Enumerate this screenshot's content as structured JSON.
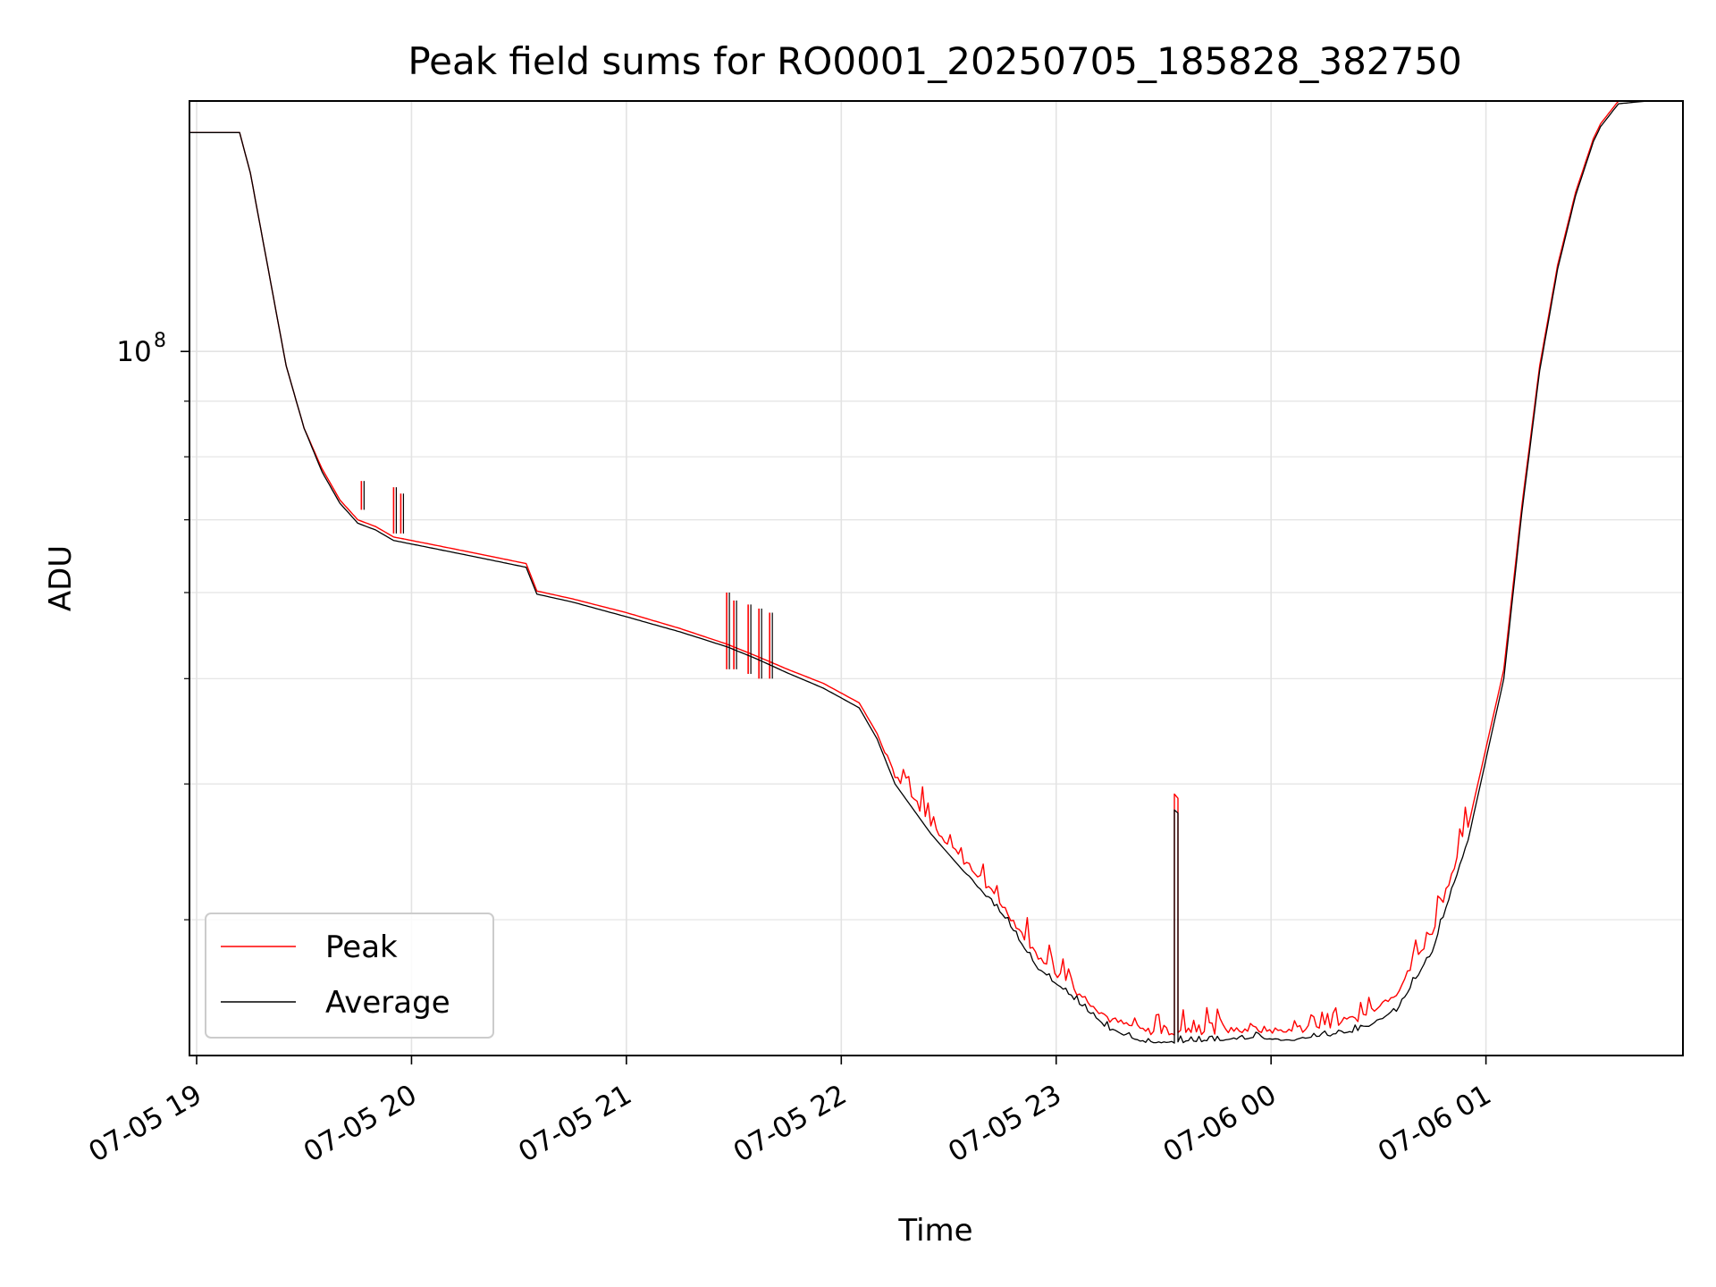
{
  "chart_data": {
    "type": "line",
    "title": "Peak field sums for RO0001_20250705_185828_382750",
    "xlabel": "Time",
    "ylabel": "ADU",
    "y_scale": "log",
    "grid": true,
    "legend_position": "lower-left",
    "xlim": [
      "2025-07-05 18:58",
      "2025-07-06 01:55"
    ],
    "ylim": [
      22500000,
      170000000
    ],
    "x_ticks": [
      {
        "t": "2025-07-05 19:00",
        "label": "07-05 19"
      },
      {
        "t": "2025-07-05 20:00",
        "label": "07-05 20"
      },
      {
        "t": "2025-07-05 21:00",
        "label": "07-05 21"
      },
      {
        "t": "2025-07-05 22:00",
        "label": "07-05 22"
      },
      {
        "t": "2025-07-05 23:00",
        "label": "07-05 23"
      },
      {
        "t": "2025-07-06 00:00",
        "label": "07-06 00"
      },
      {
        "t": "2025-07-06 01:00",
        "label": "07-06 01"
      }
    ],
    "y_major_tick": {
      "value": 100000000,
      "label_base": "10",
      "label_exp": "8"
    },
    "y_minor_ticks": [
      30000000,
      40000000,
      50000000,
      60000000,
      70000000,
      80000000,
      90000000,
      200000000
    ],
    "series": [
      {
        "name": "Peak",
        "color": "#ff0000",
        "x": [
          "2025-07-05 18:58",
          "2025-07-05 19:05",
          "2025-07-05 19:10",
          "2025-07-05 19:12",
          "2025-07-05 19:15",
          "2025-07-05 19:20",
          "2025-07-05 19:25",
          "2025-07-05 19:30",
          "2025-07-05 19:35",
          "2025-07-05 19:40",
          "2025-07-05 19:45",
          "2025-07-05 19:50",
          "2025-07-05 19:55",
          "2025-07-05 20:00",
          "2025-07-05 20:05",
          "2025-07-05 20:15",
          "2025-07-05 20:25",
          "2025-07-05 20:32",
          "2025-07-05 20:35",
          "2025-07-05 20:45",
          "2025-07-05 21:00",
          "2025-07-05 21:15",
          "2025-07-05 21:28",
          "2025-07-05 21:36",
          "2025-07-05 21:45",
          "2025-07-05 21:55",
          "2025-07-05 22:05",
          "2025-07-05 22:10",
          "2025-07-05 22:15",
          "2025-07-05 22:25",
          "2025-07-05 22:35",
          "2025-07-05 22:45",
          "2025-07-05 22:55",
          "2025-07-05 23:05",
          "2025-07-05 23:15",
          "2025-07-05 23:25",
          "2025-07-05 23:33",
          "2025-07-05 23:33",
          "2025-07-05 23:34",
          "2025-07-05 23:34",
          "2025-07-05 23:45",
          "2025-07-05 23:55",
          "2025-07-06 00:05",
          "2025-07-06 00:15",
          "2025-07-06 00:25",
          "2025-07-06 00:35",
          "2025-07-06 00:45",
          "2025-07-06 00:55",
          "2025-07-06 01:05",
          "2025-07-06 01:10",
          "2025-07-06 01:15",
          "2025-07-06 01:20",
          "2025-07-06 01:25",
          "2025-07-06 01:30",
          "2025-07-06 01:32",
          "2025-07-06 01:37",
          "2025-07-06 01:45",
          "2025-07-06 01:50"
        ],
        "y": [
          159000000,
          159000000,
          159000000,
          159000000,
          146000000,
          119000000,
          97000000,
          85000000,
          78000000,
          73000000,
          70000000,
          69000000,
          67500000,
          67000000,
          66500000,
          65500000,
          64500000,
          63800000,
          60200000,
          59200000,
          57500000,
          55600000,
          53800000,
          52500000,
          51000000,
          49500000,
          47500000,
          44500000,
          40500000,
          36500000,
          33500000,
          30700000,
          27500000,
          25700000,
          24100000,
          23500000,
          23500000,
          39000000,
          38800000,
          23500000,
          23500000,
          23600000,
          23500000,
          23800000,
          24200000,
          25500000,
          29000000,
          36500000,
          51000000,
          72000000,
          97000000,
          120000000,
          140000000,
          157000000,
          162000000,
          170000000,
          170000000,
          170000000
        ],
        "spikes": [
          {
            "t": "2025-07-05 19:46",
            "low": 71500000,
            "high": 76000000
          },
          {
            "t": "2025-07-05 19:55",
            "low": 68000000,
            "high": 75000000
          },
          {
            "t": "2025-07-05 19:57",
            "low": 68000000,
            "high": 74000000
          },
          {
            "t": "2025-07-05 21:28",
            "low": 51000000,
            "high": 60000000
          },
          {
            "t": "2025-07-05 21:30",
            "low": 51000000,
            "high": 59000000
          },
          {
            "t": "2025-07-05 21:34",
            "low": 50500000,
            "high": 58500000
          },
          {
            "t": "2025-07-05 21:37",
            "low": 50000000,
            "high": 58000000
          },
          {
            "t": "2025-07-05 21:40",
            "low": 50000000,
            "high": 57500000
          }
        ]
      },
      {
        "name": "Average",
        "color": "#000000",
        "x": [
          "2025-07-05 18:58",
          "2025-07-05 19:05",
          "2025-07-05 19:10",
          "2025-07-05 19:12",
          "2025-07-05 19:15",
          "2025-07-05 19:20",
          "2025-07-05 19:25",
          "2025-07-05 19:30",
          "2025-07-05 19:35",
          "2025-07-05 19:40",
          "2025-07-05 19:45",
          "2025-07-05 19:50",
          "2025-07-05 19:55",
          "2025-07-05 20:00",
          "2025-07-05 20:05",
          "2025-07-05 20:15",
          "2025-07-05 20:25",
          "2025-07-05 20:32",
          "2025-07-05 20:35",
          "2025-07-05 20:45",
          "2025-07-05 21:00",
          "2025-07-05 21:15",
          "2025-07-05 21:28",
          "2025-07-05 21:36",
          "2025-07-05 21:45",
          "2025-07-05 21:55",
          "2025-07-05 22:05",
          "2025-07-05 22:10",
          "2025-07-05 22:15",
          "2025-07-05 22:25",
          "2025-07-05 22:35",
          "2025-07-05 22:45",
          "2025-07-05 22:55",
          "2025-07-05 23:05",
          "2025-07-05 23:15",
          "2025-07-05 23:25",
          "2025-07-05 23:33",
          "2025-07-05 23:33",
          "2025-07-05 23:34",
          "2025-07-05 23:34",
          "2025-07-05 23:45",
          "2025-07-05 23:55",
          "2025-07-06 00:05",
          "2025-07-06 00:15",
          "2025-07-06 00:25",
          "2025-07-06 00:35",
          "2025-07-06 00:45",
          "2025-07-06 00:55",
          "2025-07-06 01:05",
          "2025-07-06 01:10",
          "2025-07-06 01:15",
          "2025-07-06 01:20",
          "2025-07-06 01:25",
          "2025-07-06 01:30",
          "2025-07-06 01:32",
          "2025-07-06 01:37",
          "2025-07-06 01:45",
          "2025-07-06 01:50"
        ],
        "y": [
          159000000,
          159000000,
          159000000,
          159000000,
          146000000,
          119000000,
          97000000,
          85000000,
          77500000,
          72500000,
          69500000,
          68500000,
          67000000,
          66500000,
          66000000,
          65000000,
          64000000,
          63300000,
          59800000,
          58800000,
          57000000,
          55200000,
          53500000,
          52200000,
          50600000,
          49000000,
          47000000,
          44000000,
          40000000,
          36000000,
          33000000,
          30300000,
          27000000,
          25300000,
          23700000,
          23100000,
          23100000,
          37800000,
          37600000,
          23100000,
          23200000,
          23300000,
          23200000,
          23400000,
          23700000,
          24700000,
          28000000,
          35500000,
          50000000,
          71000000,
          96000000,
          119000000,
          139000000,
          156000000,
          161000000,
          169000000,
          170000000,
          170000000
        ]
      }
    ]
  }
}
